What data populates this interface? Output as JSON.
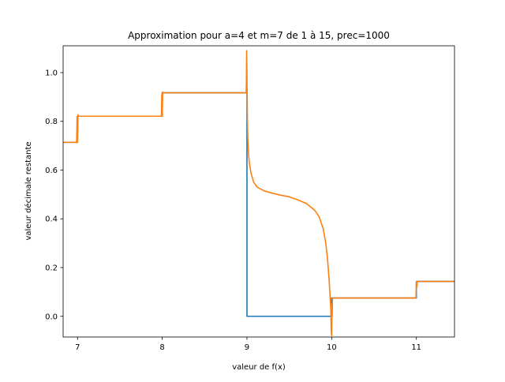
{
  "chart_data": {
    "type": "line",
    "title": "Approximation pour a=4 et m=7 de 1 à 15, prec=1000",
    "xlabel": "valeur de f(x)",
    "ylabel": "valeur décimale restante",
    "xlim": [
      6.83,
      11.45
    ],
    "ylim": [
      -0.085,
      1.11
    ],
    "xticks": [
      7,
      8,
      9,
      10,
      11
    ],
    "xtick_labels": [
      "7",
      "8",
      "9",
      "10",
      "11"
    ],
    "yticks": [
      0.0,
      0.2,
      0.4,
      0.6,
      0.8,
      1.0
    ],
    "ytick_labels": [
      "0.0",
      "0.2",
      "0.4",
      "0.6",
      "0.8",
      "1.0"
    ],
    "grid": false,
    "legend": "none",
    "series": [
      {
        "color": "#1f77b4",
        "x": [
          6.83,
          6.99,
          6.995,
          7.0,
          7.0,
          8.0,
          8.0,
          9.0,
          9.0,
          10.0,
          10.0,
          11.0,
          11.0,
          11.45
        ],
        "y": [
          0.714,
          0.714,
          0.714,
          0.714,
          0.821,
          0.821,
          0.917,
          0.917,
          0.0,
          0.0,
          0.075,
          0.075,
          0.143,
          0.143
        ]
      },
      {
        "color": "#ff7f0e",
        "x": [
          6.83,
          6.99,
          6.995,
          7.0,
          7.005,
          7.01,
          7.99,
          7.995,
          8.0,
          8.005,
          8.01,
          8.985,
          8.99,
          8.993,
          8.996,
          9.0,
          9.003,
          9.006,
          9.01,
          9.02,
          9.03,
          9.05,
          9.08,
          9.12,
          9.2,
          9.3,
          9.4,
          9.5,
          9.6,
          9.7,
          9.8,
          9.85,
          9.9,
          9.93,
          9.95,
          9.97,
          9.98,
          9.99,
          9.995,
          10.0,
          10.003,
          10.006,
          10.01,
          10.02,
          10.99,
          10.995,
          11.0,
          11.005,
          11.01,
          11.45
        ],
        "y": [
          0.714,
          0.714,
          0.82,
          0.714,
          0.827,
          0.821,
          0.821,
          0.91,
          0.82,
          0.92,
          0.917,
          0.917,
          0.917,
          0.95,
          1.09,
          0.99,
          0.88,
          0.8,
          0.73,
          0.66,
          0.625,
          0.585,
          0.55,
          0.53,
          0.515,
          0.505,
          0.497,
          0.49,
          0.478,
          0.463,
          0.435,
          0.41,
          0.36,
          0.3,
          0.24,
          0.15,
          0.09,
          0.03,
          -0.06,
          -0.08,
          0.05,
          0.0,
          0.075,
          0.075,
          0.075,
          0.075,
          0.143,
          0.12,
          0.143,
          0.143
        ]
      }
    ]
  }
}
